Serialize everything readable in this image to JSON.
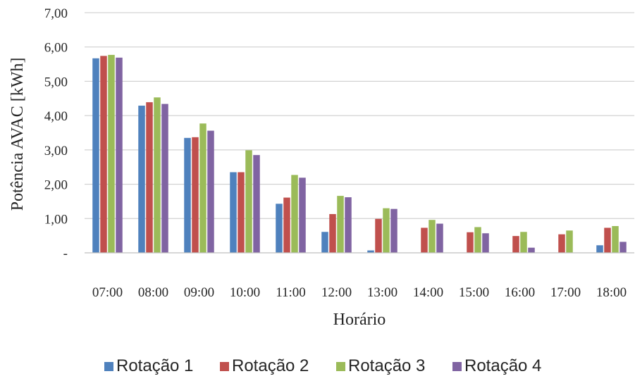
{
  "chart_data": {
    "type": "bar",
    "title": "",
    "xlabel": "Horário",
    "ylabel": "Potência AVAC [kWh]",
    "ylim": [
      0,
      7
    ],
    "yticks": [
      0,
      1,
      2,
      3,
      4,
      5,
      6,
      7
    ],
    "ytick_labels": [
      "-",
      "1,00",
      "2,00",
      "3,00",
      "4,00",
      "5,00",
      "6,00",
      "7,00"
    ],
    "grid": true,
    "legend_position": "bottom",
    "categories": [
      "07:00",
      "08:00",
      "09:00",
      "10:00",
      "11:00",
      "12:00",
      "13:00",
      "14:00",
      "15:00",
      "16:00",
      "17:00",
      "18:00"
    ],
    "series": [
      {
        "name": "Rotação 1",
        "color": "#4f81bd",
        "values": [
          5.67,
          4.29,
          3.35,
          2.35,
          1.43,
          0.61,
          0.07,
          0,
          0,
          0,
          0,
          0.22
        ]
      },
      {
        "name": "Rotação 2",
        "color": "#c0504d",
        "values": [
          5.74,
          4.39,
          3.37,
          2.35,
          1.61,
          1.13,
          0.99,
          0.73,
          0.6,
          0.49,
          0.54,
          0.73
        ]
      },
      {
        "name": "Rotação 3",
        "color": "#9bbb59",
        "values": [
          5.77,
          4.53,
          3.77,
          2.99,
          2.27,
          1.66,
          1.3,
          0.96,
          0.75,
          0.61,
          0.65,
          0.78
        ]
      },
      {
        "name": "Rotação 4",
        "color": "#8064a2",
        "values": [
          5.69,
          4.34,
          3.56,
          2.85,
          2.19,
          1.62,
          1.28,
          0.85,
          0.57,
          0.15,
          0,
          0.32
        ]
      }
    ]
  }
}
